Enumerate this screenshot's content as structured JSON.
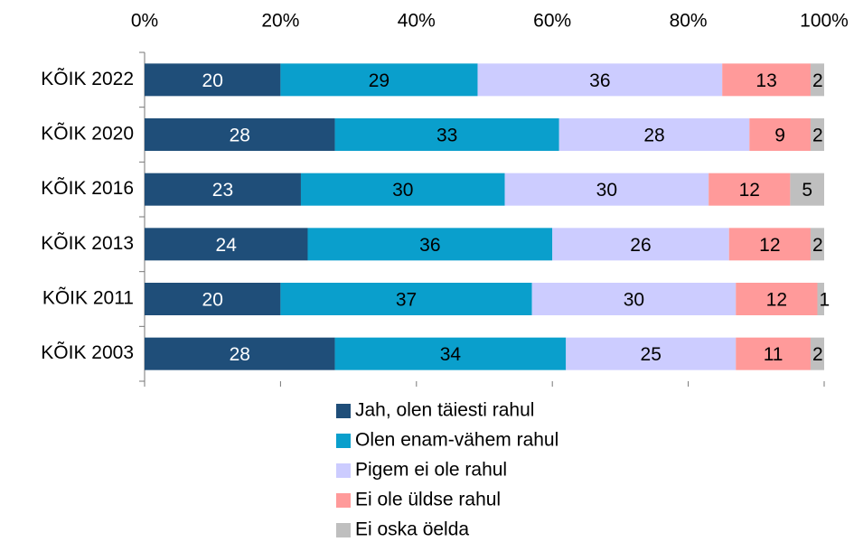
{
  "chart_data": {
    "type": "stacked-bar-horizontal",
    "categories": [
      "KÕIK 2022",
      "KÕIK 2020",
      "KÕIK 2016",
      "KÕIK 2013",
      "KÕIK 2011",
      "KÕIK 2003"
    ],
    "series": [
      {
        "name": "Jah, olen täiesti rahul",
        "color": "#1f4e79",
        "values": [
          20,
          28,
          23,
          24,
          20,
          28
        ]
      },
      {
        "name": "Olen enam-vähem rahul",
        "color": "#0a9fcc",
        "values": [
          29,
          33,
          30,
          36,
          37,
          34
        ]
      },
      {
        "name": "Pigem ei ole rahul",
        "color": "#ccccff",
        "values": [
          36,
          28,
          30,
          26,
          30,
          25
        ]
      },
      {
        "name": "Ei ole üldse rahul",
        "color": "#ff9a9a",
        "values": [
          13,
          9,
          12,
          12,
          12,
          11
        ]
      },
      {
        "name": "Ei oska öelda",
        "color": "#bfbfbf",
        "values": [
          2,
          2,
          5,
          2,
          1,
          2
        ]
      }
    ],
    "xlim": [
      0,
      100
    ],
    "xticks": [
      {
        "value": 0,
        "label": "0%"
      },
      {
        "value": 20,
        "label": "20%"
      },
      {
        "value": 40,
        "label": "40%"
      },
      {
        "value": 60,
        "label": "60%"
      },
      {
        "value": 80,
        "label": "80%"
      },
      {
        "value": 100,
        "label": "100%"
      }
    ],
    "label_colors": [
      "#ffffff",
      "#000000",
      "#000000",
      "#000000",
      "#000000"
    ]
  }
}
